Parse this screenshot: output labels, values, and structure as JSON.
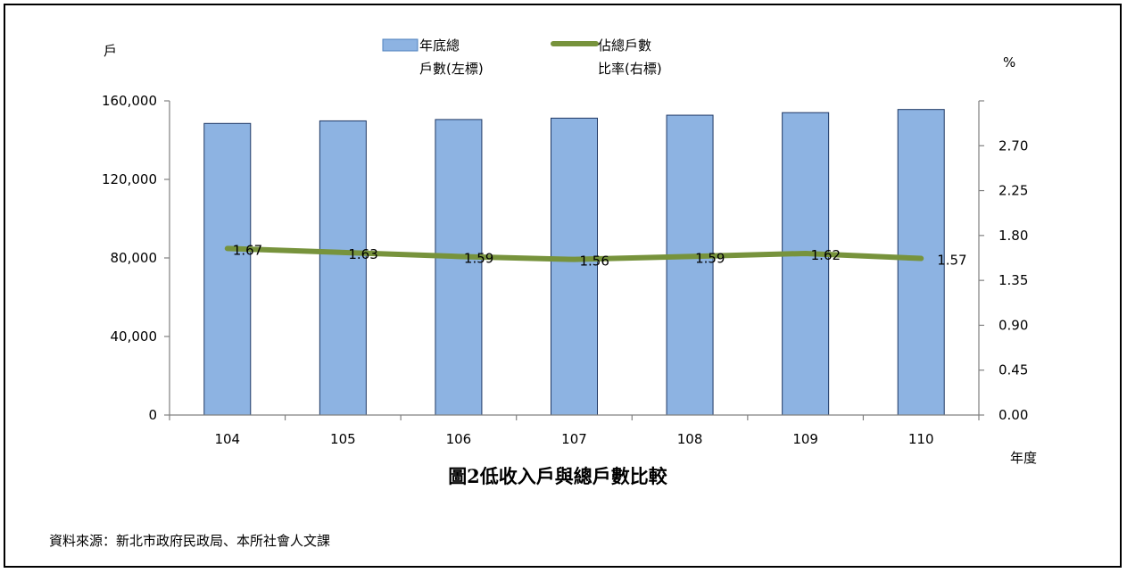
{
  "chart_data": {
    "type": "bar",
    "title": "圖2低收入戶與總戶數比較",
    "xlabel": "年度",
    "ylabel_left": "戶",
    "ylabel_right": "%",
    "categories": [
      "104",
      "105",
      "106",
      "107",
      "108",
      "109",
      "110"
    ],
    "ylim_left": [
      0,
      160000
    ],
    "ylim_right": [
      0,
      3.15
    ],
    "left_ticks": [
      "0",
      "40,000",
      "80,000",
      "120,000",
      "160,000"
    ],
    "left_tick_values": [
      0,
      40000,
      80000,
      120000,
      160000
    ],
    "right_ticks": [
      "0.00",
      "0.45",
      "0.90",
      "1.35",
      "1.80",
      "2.25",
      "2.70"
    ],
    "right_tick_values": [
      0,
      0.45,
      0.9,
      1.35,
      1.8,
      2.25,
      2.7
    ],
    "series": [
      {
        "name": "年底總戶數(左標)",
        "legend_lines": [
          "年底總",
          "戶數(左標)"
        ],
        "type": "bar",
        "axis": "left",
        "color": "#8db3e2",
        "values": [
          148500,
          149800,
          150500,
          151200,
          152700,
          154000,
          155600
        ]
      },
      {
        "name": "佔總戶數比率(右標)",
        "legend_lines": [
          "佔總戶數",
          "比率(右標)"
        ],
        "type": "line",
        "axis": "right",
        "color": "#77933c",
        "values": [
          1.67,
          1.63,
          1.59,
          1.56,
          1.59,
          1.62,
          1.57
        ],
        "labels": [
          "1.67",
          "1.63",
          "1.59",
          "1.56",
          "1.59",
          "1.62",
          "1.57"
        ]
      }
    ],
    "grid": false,
    "legend_position": "top"
  },
  "source_note": "資料來源：新北市政府民政局、本所社會人文課"
}
